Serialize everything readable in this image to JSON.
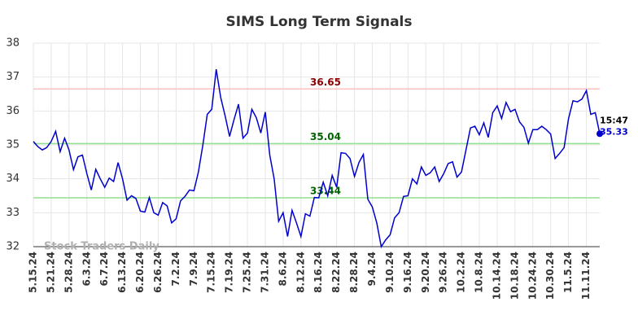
{
  "chart_data": {
    "type": "line",
    "title": "SIMS Long Term Signals",
    "categories": [
      "5.15.24",
      null,
      null,
      null,
      "5.21.24",
      null,
      null,
      null,
      "5.28.24",
      null,
      null,
      null,
      "6.3.24",
      null,
      null,
      null,
      "6.7.24",
      null,
      null,
      null,
      "6.13.24",
      null,
      null,
      null,
      "6.20.24",
      null,
      null,
      null,
      "6.26.24",
      null,
      null,
      null,
      "7.2.24",
      null,
      null,
      null,
      "7.9.24",
      null,
      null,
      null,
      "7.15.24",
      null,
      null,
      null,
      "7.19.24",
      null,
      null,
      null,
      "7.25.24",
      null,
      null,
      null,
      "7.31.24",
      null,
      null,
      null,
      "8.6.24",
      null,
      null,
      null,
      "8.12.24",
      null,
      null,
      null,
      "8.16.24",
      null,
      null,
      null,
      "8.22.24",
      null,
      null,
      null,
      "8.28.24",
      null,
      null,
      null,
      "9.4.24",
      null,
      null,
      null,
      "9.10.24",
      null,
      null,
      null,
      "9.16.24",
      null,
      null,
      null,
      "9.20.24",
      null,
      null,
      null,
      "9.26.24",
      null,
      null,
      null,
      "10.2.24",
      null,
      null,
      null,
      "10.8.24",
      null,
      null,
      null,
      "10.14.24",
      null,
      null,
      null,
      "10.18.24",
      null,
      null,
      null,
      "10.24.24",
      null,
      null,
      null,
      "10.30.24",
      null,
      null,
      null,
      "11.5.24",
      null,
      null,
      null,
      "11.11.24",
      null,
      null,
      null
    ],
    "values": [
      35.1,
      34.95,
      34.85,
      34.92,
      35.1,
      35.4,
      34.8,
      35.2,
      34.85,
      34.27,
      34.65,
      34.7,
      34.15,
      33.67,
      34.28,
      34.0,
      33.75,
      34.02,
      33.92,
      34.48,
      34.0,
      33.37,
      33.5,
      33.42,
      33.05,
      33.02,
      33.45,
      33.0,
      32.93,
      33.3,
      33.2,
      32.7,
      32.82,
      33.35,
      33.48,
      33.67,
      33.65,
      34.2,
      35.0,
      35.9,
      36.05,
      37.23,
      36.4,
      35.85,
      35.25,
      35.75,
      36.2,
      35.2,
      35.35,
      36.05,
      35.8,
      35.35,
      35.97,
      34.7,
      34.0,
      32.75,
      33.0,
      32.3,
      33.07,
      32.7,
      32.3,
      32.97,
      32.9,
      33.45,
      33.44,
      33.9,
      33.5,
      34.1,
      33.75,
      34.77,
      34.75,
      34.6,
      34.07,
      34.48,
      34.72,
      33.4,
      33.17,
      32.7,
      32.0,
      32.2,
      32.35,
      32.85,
      33.0,
      33.48,
      33.5,
      34.0,
      33.85,
      34.35,
      34.1,
      34.18,
      34.35,
      33.92,
      34.15,
      34.45,
      34.5,
      34.05,
      34.2,
      34.85,
      35.5,
      35.55,
      35.3,
      35.65,
      35.22,
      35.95,
      36.15,
      35.78,
      36.25,
      35.98,
      36.05,
      35.68,
      35.52,
      35.05,
      35.45,
      35.45,
      35.55,
      35.45,
      35.32,
      34.6,
      34.75,
      34.92,
      35.77,
      36.3,
      36.27,
      36.35,
      36.6,
      35.9,
      35.95,
      35.33
    ],
    "color": "#0000cc",
    "ylim": [
      32,
      38
    ],
    "yticks": [
      32,
      33,
      34,
      35,
      36,
      37,
      38
    ],
    "grid": true,
    "hlines": [
      {
        "value": 36.65,
        "color": "#ffc0c0",
        "label_color": "#8b0000"
      },
      {
        "value": 35.04,
        "color": "#90e090",
        "label_color": "#006400"
      },
      {
        "value": 33.44,
        "color": "#90e090",
        "label_color": "#006400"
      }
    ],
    "last_time": "15:47",
    "watermark": "Stock Traders Daily"
  }
}
